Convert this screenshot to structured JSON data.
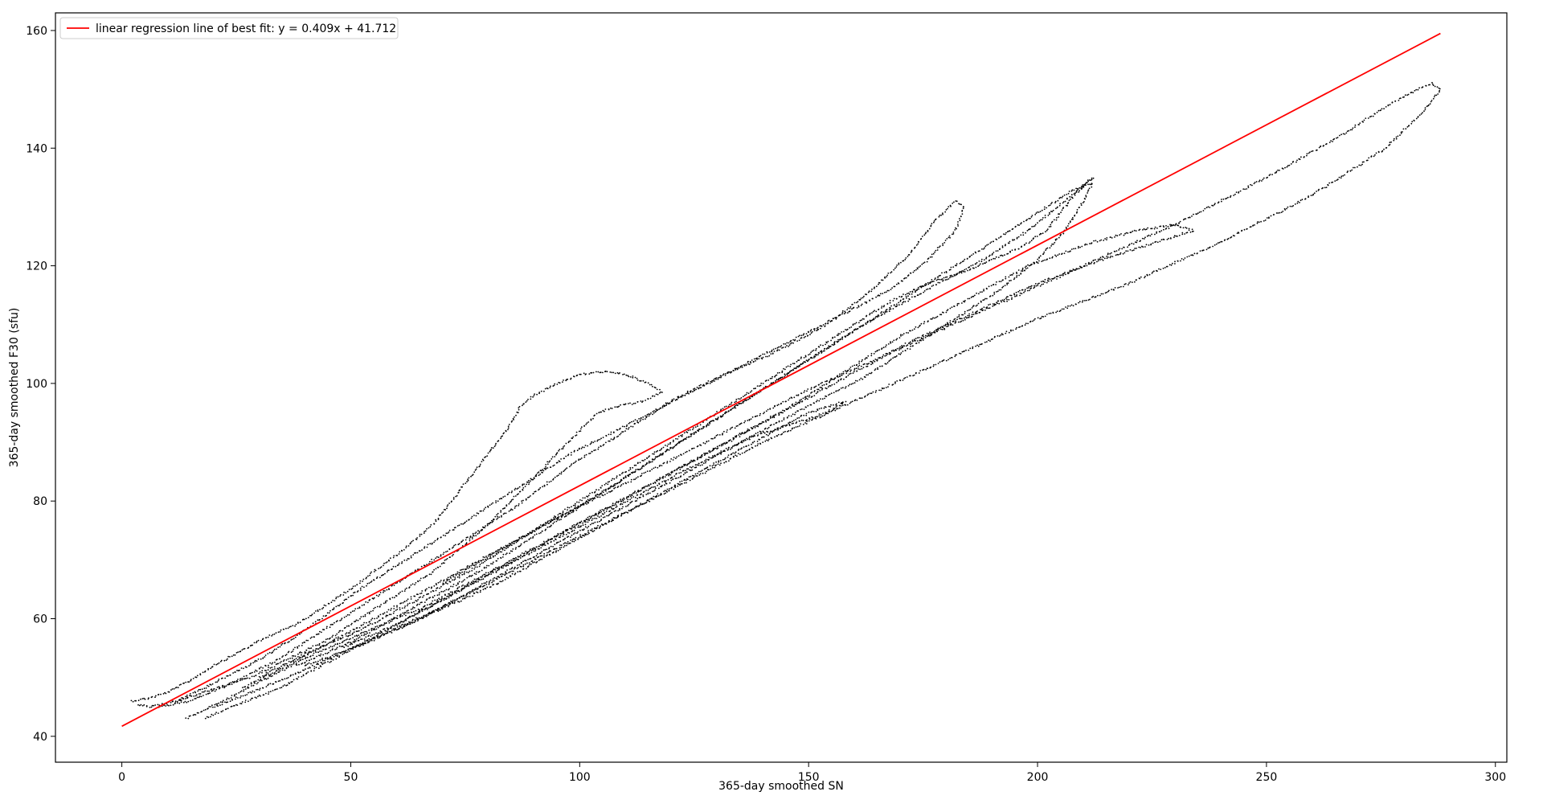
{
  "chart_data": {
    "type": "scatter",
    "title": "",
    "xlabel": "365-day smoothed SN",
    "ylabel": "365-day smoothed F30 (sfu)",
    "xlim": [
      -14.5,
      302.5
    ],
    "ylim": [
      35.6,
      163
    ],
    "xticks": [
      0,
      50,
      100,
      150,
      200,
      250,
      300
    ],
    "yticks": [
      40,
      60,
      80,
      100,
      120,
      140,
      160
    ],
    "grid": false,
    "legend_position": "top-left",
    "colors": {
      "points": "#000000",
      "fit_line": "#ff0000",
      "axes": "#000000"
    },
    "series": [
      {
        "name": "",
        "kind": "points",
        "cycles": [
          [
            [
              2,
              46
            ],
            [
              6,
              46.5
            ],
            [
              10,
              47.5
            ],
            [
              15,
              49.5
            ],
            [
              20,
              52
            ],
            [
              26,
              54.5
            ],
            [
              32,
              57
            ],
            [
              38,
              59
            ],
            [
              44,
              62
            ],
            [
              50,
              65
            ],
            [
              55,
              68
            ],
            [
              62,
              72
            ],
            [
              68,
              76
            ],
            [
              74,
              82
            ],
            [
              80,
              88
            ],
            [
              84,
              92
            ],
            [
              87,
              96
            ],
            [
              90,
              98
            ],
            [
              95,
              100
            ],
            [
              100,
              101.5
            ],
            [
              105,
              102
            ],
            [
              110,
              101.5
            ],
            [
              115,
              100
            ],
            [
              118,
              98.5
            ],
            [
              114,
              97
            ],
            [
              108,
              96
            ],
            [
              104,
              95
            ],
            [
              100,
              92
            ],
            [
              95,
              88
            ],
            [
              90,
              84
            ],
            [
              85,
              80
            ],
            [
              80,
              76
            ],
            [
              74,
              72
            ],
            [
              68,
              68
            ],
            [
              60,
              64
            ],
            [
              52,
              60
            ],
            [
              44,
              56
            ],
            [
              36,
              53
            ],
            [
              28,
              50
            ],
            [
              20,
              48
            ],
            [
              12,
              46
            ],
            [
              6,
              45
            ],
            [
              3,
              45.5
            ]
          ],
          [
            [
              8,
              45
            ],
            [
              15,
              46
            ],
            [
              24,
              49
            ],
            [
              34,
              53
            ],
            [
              44,
              58
            ],
            [
              54,
              63
            ],
            [
              64,
              68
            ],
            [
              74,
              73
            ],
            [
              86,
              79
            ],
            [
              98,
              86
            ],
            [
              110,
              92
            ],
            [
              120,
              97
            ],
            [
              130,
              101
            ],
            [
              142,
              105
            ],
            [
              154,
              110
            ],
            [
              164,
              116
            ],
            [
              172,
              122
            ],
            [
              178,
              128
            ],
            [
              182,
              131
            ],
            [
              184,
              130
            ],
            [
              182,
              126
            ],
            [
              176,
              121
            ],
            [
              168,
              116
            ],
            [
              158,
              112
            ],
            [
              148,
              108
            ],
            [
              138,
              104
            ],
            [
              128,
              100
            ],
            [
              118,
              96
            ],
            [
              108,
              92
            ],
            [
              98,
              88
            ],
            [
              88,
              83
            ],
            [
              76,
              77
            ],
            [
              64,
              71
            ],
            [
              52,
              65
            ],
            [
              40,
              58
            ],
            [
              30,
              53
            ],
            [
              20,
              49
            ],
            [
              12,
              46
            ]
          ],
          [
            [
              14,
              43
            ],
            [
              22,
              46
            ],
            [
              32,
              50
            ],
            [
              42,
              54
            ],
            [
              54,
              58
            ],
            [
              66,
              62
            ],
            [
              78,
              67
            ],
            [
              90,
              72
            ],
            [
              104,
              78
            ],
            [
              118,
              84
            ],
            [
              132,
              90
            ],
            [
              146,
              96
            ],
            [
              158,
              102
            ],
            [
              170,
              108
            ],
            [
              184,
              114
            ],
            [
              198,
              120
            ],
            [
              212,
              124
            ],
            [
              222,
              126
            ],
            [
              230,
              127
            ],
            [
              234,
              126
            ],
            [
              226,
              124
            ],
            [
              214,
              121
            ],
            [
              200,
              117
            ],
            [
              186,
              112
            ],
            [
              172,
              107
            ],
            [
              158,
              101
            ],
            [
              144,
              95
            ],
            [
              130,
              89
            ],
            [
              116,
              83
            ],
            [
              102,
              77
            ],
            [
              88,
              71
            ],
            [
              74,
              65
            ],
            [
              60,
              59
            ],
            [
              46,
              53
            ],
            [
              34,
              48
            ],
            [
              24,
              45
            ],
            [
              18,
              43
            ]
          ],
          [
            [
              20,
              45
            ],
            [
              30,
              48
            ],
            [
              42,
              52
            ],
            [
              56,
              57
            ],
            [
              70,
              62
            ],
            [
              84,
              68
            ],
            [
              98,
              74
            ],
            [
              112,
              80
            ],
            [
              126,
              86
            ],
            [
              140,
              92
            ],
            [
              152,
              97
            ],
            [
              162,
              101
            ],
            [
              172,
              106
            ],
            [
              182,
              111
            ],
            [
              192,
              116
            ],
            [
              200,
              121
            ],
            [
              206,
              126
            ],
            [
              210,
              131
            ],
            [
              212,
              134
            ],
            [
              208,
              133
            ],
            [
              202,
              130
            ],
            [
              196,
              127
            ],
            [
              188,
              123
            ],
            [
              178,
              118
            ],
            [
              166,
              112
            ],
            [
              152,
              105
            ],
            [
              140,
              99
            ],
            [
              128,
              93
            ],
            [
              116,
              87
            ],
            [
              104,
              81
            ],
            [
              90,
              75
            ],
            [
              76,
              69
            ],
            [
              62,
              63
            ],
            [
              48,
              57
            ],
            [
              36,
              52
            ],
            [
              26,
              48
            ]
          ],
          [
            [
              30,
              50
            ],
            [
              40,
              54
            ],
            [
              52,
              58
            ],
            [
              64,
              63
            ],
            [
              78,
              69
            ],
            [
              92,
              76
            ],
            [
              106,
              83
            ],
            [
              120,
              90
            ],
            [
              134,
              97
            ],
            [
              146,
              103
            ],
            [
              158,
              109
            ],
            [
              168,
              114
            ],
            [
              176,
              117
            ],
            [
              184,
              119
            ],
            [
              190,
              121
            ],
            [
              196,
              123
            ],
            [
              202,
              126
            ],
            [
              208,
              132
            ],
            [
              212,
              135
            ],
            [
              206,
              131
            ],
            [
              198,
              126
            ],
            [
              188,
              121
            ],
            [
              176,
              116
            ],
            [
              162,
              110
            ],
            [
              148,
              103
            ],
            [
              134,
              96
            ],
            [
              120,
              89
            ],
            [
              106,
              82
            ],
            [
              92,
              75
            ],
            [
              78,
              68
            ],
            [
              64,
              62
            ],
            [
              50,
              56
            ],
            [
              38,
              52
            ]
          ],
          [
            [
              40,
              52
            ],
            [
              54,
              56
            ],
            [
              68,
              61
            ],
            [
              82,
              66
            ],
            [
              96,
              72
            ],
            [
              110,
              78
            ],
            [
              124,
              84
            ],
            [
              138,
              90
            ],
            [
              150,
              95
            ],
            [
              158,
              97
            ],
            [
              154,
              95
            ],
            [
              146,
              93
            ],
            [
              138,
              91
            ],
            [
              130,
              88
            ],
            [
              120,
              84
            ],
            [
              108,
              79
            ],
            [
              96,
              74
            ],
            [
              84,
              69
            ],
            [
              72,
              64
            ],
            [
              60,
              59
            ],
            [
              48,
              55
            ]
          ],
          [
            [
              60,
              58
            ],
            [
              80,
              66
            ],
            [
              100,
              74
            ],
            [
              120,
              82
            ],
            [
              140,
              90
            ],
            [
              160,
              97
            ],
            [
              180,
              104
            ],
            [
              200,
              111
            ],
            [
              220,
              117
            ],
            [
              240,
              124
            ],
            [
              260,
              132
            ],
            [
              276,
              140
            ],
            [
              284,
              146
            ],
            [
              288,
              150
            ],
            [
              286,
              151
            ],
            [
              278,
              148
            ],
            [
              266,
              142
            ],
            [
              250,
              135
            ],
            [
              230,
              127
            ],
            [
              210,
              120
            ],
            [
              190,
              113
            ],
            [
              170,
              106
            ],
            [
              150,
              99
            ],
            [
              130,
              91
            ],
            [
              110,
              83
            ],
            [
              90,
              75
            ],
            [
              70,
              66
            ]
          ]
        ]
      }
    ],
    "fit_line": {
      "name": "linear regression line of best fit: y = 0.409x + 41.712",
      "slope": 0.409,
      "intercept": 41.712,
      "x_range": [
        0,
        288
      ]
    }
  }
}
